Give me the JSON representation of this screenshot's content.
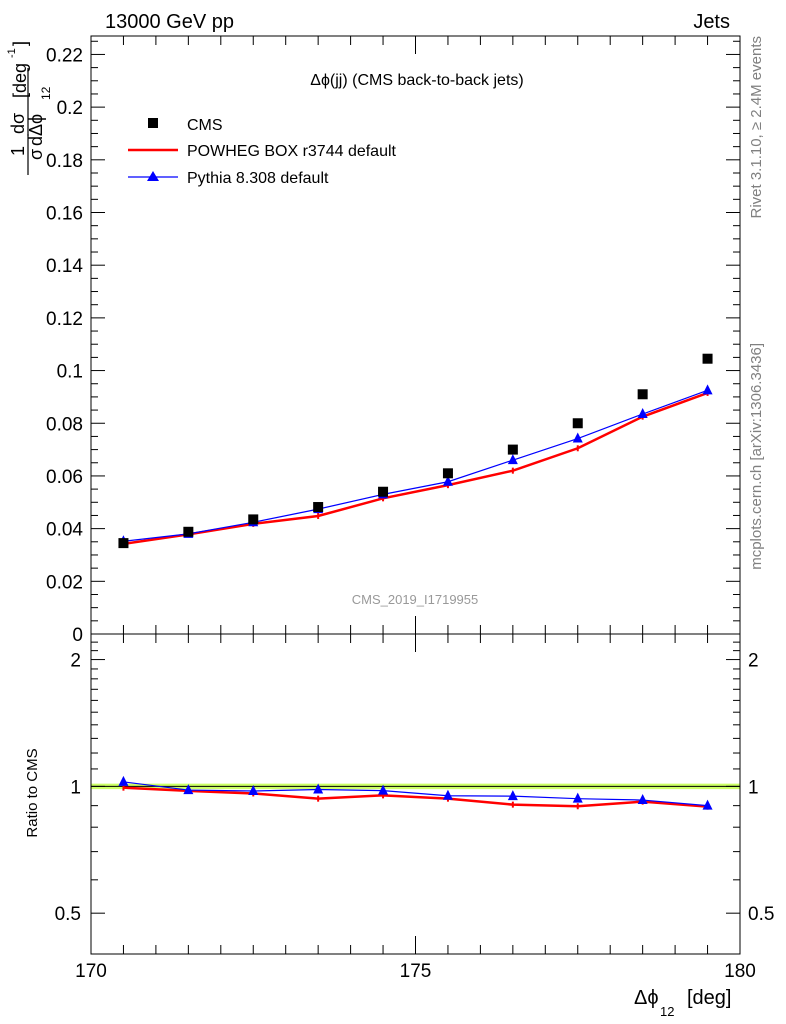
{
  "header": {
    "left": "13000 GeV pp",
    "right": "Jets"
  },
  "side_labels": {
    "rivet": "Rivet 3.1.10, ≥ 2.4M events",
    "mcplots": "mcplots.cern.ch [arXiv:1306.3436]"
  },
  "chart_data": [
    {
      "type": "line",
      "panel": "main",
      "title": "Δϕ(jj) (CMS back-to-back jets)",
      "watermark": "CMS_2019_I1719955",
      "ylabel": {
        "frac_num": "1",
        "frac_den": "σ",
        "dnum": "dσ",
        "dden": "dΔϕ",
        "dden_sub": "12",
        "unit": "[deg",
        "unit_sup": "-1",
        "unit_end": "]"
      },
      "xlim": [
        170,
        180
      ],
      "ylim": [
        0,
        0.227
      ],
      "yticks": [
        "0",
        "0.02",
        "0.04",
        "0.06",
        "0.08",
        "0.1",
        "0.12",
        "0.14",
        "0.16",
        "0.18",
        "0.2",
        "0.22"
      ],
      "x": [
        170.5,
        171.5,
        172.5,
        173.5,
        174.5,
        175.5,
        176.5,
        177.5,
        178.5,
        179.5
      ],
      "series": [
        {
          "name": "CMS",
          "color": "#000000",
          "marker": "square",
          "values": [
            0.0345,
            0.0388,
            0.0435,
            0.0482,
            0.054,
            0.061,
            0.07,
            0.08,
            0.091,
            0.1045
          ]
        },
        {
          "name": "POWHEG BOX r3744 default",
          "color": "#ff0000",
          "marker": "errorbar",
          "values": [
            0.0342,
            0.0378,
            0.0418,
            0.0448,
            0.0515,
            0.0565,
            0.062,
            0.0705,
            0.0825,
            0.0915
          ]
        },
        {
          "name": "Pythia 8.308 default",
          "color": "#0000ff",
          "marker": "triangle",
          "values": [
            0.0352,
            0.038,
            0.0424,
            0.0474,
            0.053,
            0.0578,
            0.066,
            0.0742,
            0.0835,
            0.0925
          ]
        }
      ],
      "legend_position": "top-left"
    },
    {
      "type": "line",
      "panel": "ratio",
      "ylabel": "Ratio to CMS",
      "scale": "log",
      "ylim": [
        0.4,
        2.3
      ],
      "yticks": [
        "0.5",
        "1",
        "2"
      ],
      "xlabel": {
        "main": "Δϕ",
        "sub": "12",
        "unit": "[deg]"
      },
      "xticks": [
        "170",
        "175",
        "180"
      ],
      "band": {
        "color": "#ccff66",
        "low": 0.985,
        "high": 1.015
      },
      "x": [
        170.5,
        171.5,
        172.5,
        173.5,
        174.5,
        175.5,
        176.5,
        177.5,
        178.5,
        179.5
      ],
      "series": [
        {
          "name": "POWHEG BOX r3744 default",
          "color": "#ff0000",
          "values": [
            0.993,
            0.976,
            0.962,
            0.935,
            0.952,
            0.935,
            0.905,
            0.897,
            0.92,
            0.895
          ]
        },
        {
          "name": "Pythia 8.308 default",
          "color": "#0000ff",
          "values": [
            1.025,
            0.98,
            0.975,
            0.983,
            0.977,
            0.95,
            0.948,
            0.935,
            0.928,
            0.9
          ]
        }
      ]
    }
  ]
}
